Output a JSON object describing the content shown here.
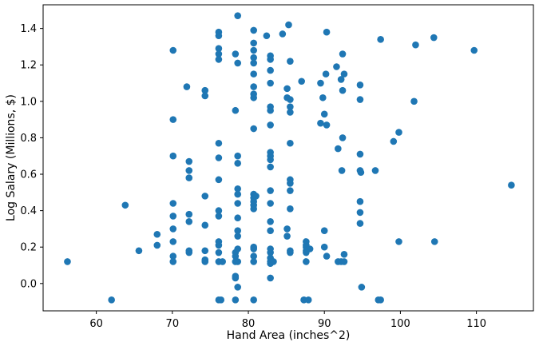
{
  "chart_data": {
    "type": "scatter",
    "title": "",
    "xlabel": "Hand Area (inches^2)",
    "ylabel": "Log Salary (Millions, $)",
    "xlim": [
      53.0,
      117.5
    ],
    "ylim": [
      -0.15,
      1.53
    ],
    "xticks": [
      60,
      70,
      80,
      90,
      100,
      110
    ],
    "yticks": [
      0.0,
      0.2,
      0.4,
      0.6,
      0.8,
      1.0,
      1.2,
      1.4
    ],
    "ytick_labels": [
      "0.0",
      "0.2",
      "0.4",
      "0.6",
      "0.8",
      "1.0",
      "1.2",
      "1.4"
    ],
    "grid": false,
    "legend": "none",
    "marker_color": "#1f77b4",
    "series": [
      {
        "name": "",
        "points": [
          [
            56.2,
            0.12
          ],
          [
            62.0,
            -0.09
          ],
          [
            63.8,
            0.43
          ],
          [
            65.6,
            0.18
          ],
          [
            68.0,
            0.27
          ],
          [
            68.0,
            0.21
          ],
          [
            70.1,
            1.28
          ],
          [
            70.1,
            0.9
          ],
          [
            70.1,
            0.7
          ],
          [
            70.1,
            0.44
          ],
          [
            70.1,
            0.37
          ],
          [
            70.1,
            0.3
          ],
          [
            70.1,
            0.23
          ],
          [
            70.1,
            0.15
          ],
          [
            70.1,
            0.12
          ],
          [
            71.9,
            1.08
          ],
          [
            72.2,
            0.67
          ],
          [
            72.2,
            0.62
          ],
          [
            72.2,
            0.58
          ],
          [
            72.2,
            0.38
          ],
          [
            72.2,
            0.34
          ],
          [
            72.2,
            0.18
          ],
          [
            72.2,
            0.17
          ],
          [
            74.3,
            1.06
          ],
          [
            74.3,
            1.03
          ],
          [
            74.3,
            0.48
          ],
          [
            74.3,
            0.32
          ],
          [
            74.3,
            0.18
          ],
          [
            74.3,
            0.13
          ],
          [
            74.3,
            0.12
          ],
          [
            76.1,
            1.38
          ],
          [
            76.1,
            1.36
          ],
          [
            76.1,
            1.29
          ],
          [
            76.1,
            1.26
          ],
          [
            76.1,
            1.23
          ],
          [
            76.1,
            0.77
          ],
          [
            76.1,
            0.69
          ],
          [
            76.1,
            0.57
          ],
          [
            76.1,
            0.4
          ],
          [
            76.1,
            0.37
          ],
          [
            76.1,
            0.23
          ],
          [
            76.1,
            0.21
          ],
          [
            76.1,
            0.17
          ],
          [
            76.1,
            0.12
          ],
          [
            76.1,
            -0.09
          ],
          [
            76.4,
            -0.09
          ],
          [
            76.6,
            0.12
          ],
          [
            78.3,
            1.26
          ],
          [
            78.3,
            0.95
          ],
          [
            78.3,
            0.17
          ],
          [
            78.3,
            0.15
          ],
          [
            78.3,
            0.12
          ],
          [
            78.3,
            0.04
          ],
          [
            78.3,
            0.03
          ],
          [
            78.3,
            -0.09
          ],
          [
            78.6,
            1.47
          ],
          [
            78.6,
            1.21
          ],
          [
            78.6,
            0.7
          ],
          [
            78.6,
            0.66
          ],
          [
            78.6,
            0.52
          ],
          [
            78.6,
            0.49
          ],
          [
            78.6,
            0.44
          ],
          [
            78.6,
            0.36
          ],
          [
            78.6,
            0.29
          ],
          [
            78.6,
            0.26
          ],
          [
            78.6,
            0.19
          ],
          [
            78.6,
            0.12
          ],
          [
            78.6,
            -0.02
          ],
          [
            80.7,
            1.39
          ],
          [
            80.7,
            1.32
          ],
          [
            80.7,
            1.28
          ],
          [
            80.7,
            1.24
          ],
          [
            80.7,
            1.21
          ],
          [
            80.7,
            1.15
          ],
          [
            80.7,
            1.08
          ],
          [
            80.7,
            1.04
          ],
          [
            80.7,
            1.02
          ],
          [
            80.7,
            0.85
          ],
          [
            80.7,
            0.49
          ],
          [
            80.7,
            0.47
          ],
          [
            80.7,
            0.45
          ],
          [
            80.7,
            0.43
          ],
          [
            80.7,
            0.41
          ],
          [
            80.7,
            0.2
          ],
          [
            80.7,
            0.19
          ],
          [
            80.7,
            0.15
          ],
          [
            80.7,
            0.12
          ],
          [
            80.7,
            -0.09
          ],
          [
            81.0,
            0.48
          ],
          [
            82.4,
            1.36
          ],
          [
            82.9,
            1.25
          ],
          [
            82.9,
            1.23
          ],
          [
            82.9,
            1.17
          ],
          [
            82.9,
            1.1
          ],
          [
            82.9,
            0.97
          ],
          [
            82.9,
            0.95
          ],
          [
            82.9,
            0.87
          ],
          [
            82.9,
            0.72
          ],
          [
            82.9,
            0.7
          ],
          [
            82.9,
            0.68
          ],
          [
            82.9,
            0.64
          ],
          [
            82.9,
            0.51
          ],
          [
            82.9,
            0.44
          ],
          [
            82.9,
            0.34
          ],
          [
            82.9,
            0.29
          ],
          [
            82.9,
            0.19
          ],
          [
            82.9,
            0.17
          ],
          [
            82.9,
            0.14
          ],
          [
            82.9,
            0.12
          ],
          [
            82.9,
            0.11
          ],
          [
            82.9,
            0.03
          ],
          [
            83.3,
            0.12
          ],
          [
            84.5,
            1.37
          ],
          [
            85.1,
            1.07
          ],
          [
            85.1,
            1.02
          ],
          [
            85.1,
            0.3
          ],
          [
            85.1,
            0.26
          ],
          [
            85.3,
            1.42
          ],
          [
            85.5,
            1.22
          ],
          [
            85.5,
            1.01
          ],
          [
            85.5,
            0.97
          ],
          [
            85.5,
            0.94
          ],
          [
            85.5,
            0.77
          ],
          [
            85.5,
            0.57
          ],
          [
            85.5,
            0.55
          ],
          [
            85.5,
            0.51
          ],
          [
            85.5,
            0.41
          ],
          [
            85.5,
            0.18
          ],
          [
            85.5,
            0.17
          ],
          [
            87.0,
            1.11
          ],
          [
            87.3,
            -0.09
          ],
          [
            87.6,
            0.23
          ],
          [
            87.6,
            0.21
          ],
          [
            87.6,
            0.2
          ],
          [
            87.6,
            0.18
          ],
          [
            87.6,
            0.17
          ],
          [
            87.6,
            0.12
          ],
          [
            87.9,
            -0.09
          ],
          [
            88.1,
            0.19
          ],
          [
            89.5,
            1.1
          ],
          [
            89.5,
            0.88
          ],
          [
            89.8,
            1.02
          ],
          [
            90.0,
            0.93
          ],
          [
            90.0,
            0.29
          ],
          [
            90.0,
            0.2
          ],
          [
            90.2,
            1.15
          ],
          [
            90.3,
            1.38
          ],
          [
            90.3,
            0.87
          ],
          [
            90.3,
            0.15
          ],
          [
            91.6,
            1.19
          ],
          [
            91.8,
            0.74
          ],
          [
            91.8,
            0.12
          ],
          [
            92.2,
            1.12
          ],
          [
            92.2,
            0.12
          ],
          [
            92.3,
            0.62
          ],
          [
            92.4,
            1.26
          ],
          [
            92.4,
            1.06
          ],
          [
            92.4,
            0.8
          ],
          [
            92.6,
            1.15
          ],
          [
            92.6,
            0.16
          ],
          [
            92.6,
            0.12
          ],
          [
            94.7,
            1.09
          ],
          [
            94.7,
            1.01
          ],
          [
            94.7,
            0.71
          ],
          [
            94.7,
            0.62
          ],
          [
            94.7,
            0.45
          ],
          [
            94.7,
            0.39
          ],
          [
            94.7,
            0.33
          ],
          [
            94.8,
            0.61
          ],
          [
            94.9,
            -0.02
          ],
          [
            96.7,
            0.62
          ],
          [
            97.1,
            -0.09
          ],
          [
            97.4,
            1.34
          ],
          [
            97.4,
            -0.09
          ],
          [
            99.1,
            0.78
          ],
          [
            99.8,
            0.83
          ],
          [
            99.8,
            0.23
          ],
          [
            101.8,
            1.0
          ],
          [
            102.0,
            1.31
          ],
          [
            104.4,
            1.35
          ],
          [
            104.5,
            0.23
          ],
          [
            109.7,
            1.28
          ],
          [
            114.6,
            0.54
          ]
        ]
      }
    ]
  }
}
